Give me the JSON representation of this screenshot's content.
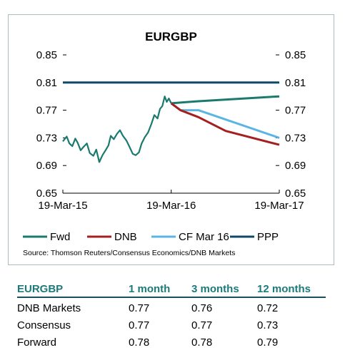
{
  "chart_data": {
    "type": "line",
    "title": "EURGBP",
    "x_tick_labels": [
      "19-Mar-15",
      "19-Mar-16",
      "19-Mar-17"
    ],
    "x_ticks": [
      "2015-03-19",
      "2016-03-19",
      "2017-03-19"
    ],
    "xlim": [
      "2015-03-19",
      "2017-03-19"
    ],
    "ylim": [
      0.65,
      0.85
    ],
    "y_ticks": [
      "0.65",
      "0.69",
      "0.73",
      "0.77",
      "0.81",
      "0.85"
    ],
    "y_axis_both_sides": true,
    "grid": false,
    "legend_position": "bottom",
    "history": {
      "color": "#1a7a6e",
      "points": [
        [
          "2015-03-19",
          0.725
        ],
        [
          "2015-04-01",
          0.732
        ],
        [
          "2015-04-10",
          0.722
        ],
        [
          "2015-04-20",
          0.718
        ],
        [
          "2015-04-30",
          0.729
        ],
        [
          "2015-05-08",
          0.723
        ],
        [
          "2015-05-18",
          0.712
        ],
        [
          "2015-05-28",
          0.717
        ],
        [
          "2015-06-08",
          0.722
        ],
        [
          "2015-06-18",
          0.708
        ],
        [
          "2015-06-30",
          0.704
        ],
        [
          "2015-07-10",
          0.713
        ],
        [
          "2015-07-20",
          0.695
        ],
        [
          "2015-07-31",
          0.705
        ],
        [
          "2015-08-10",
          0.712
        ],
        [
          "2015-08-20",
          0.719
        ],
        [
          "2015-08-28",
          0.733
        ],
        [
          "2015-09-07",
          0.728
        ],
        [
          "2015-09-18",
          0.736
        ],
        [
          "2015-09-28",
          0.741
        ],
        [
          "2015-10-08",
          0.733
        ],
        [
          "2015-10-20",
          0.726
        ],
        [
          "2015-10-30",
          0.717
        ],
        [
          "2015-11-10",
          0.707
        ],
        [
          "2015-11-20",
          0.705
        ],
        [
          "2015-12-01",
          0.709
        ],
        [
          "2015-12-10",
          0.722
        ],
        [
          "2015-12-21",
          0.731
        ],
        [
          "2016-01-01",
          0.738
        ],
        [
          "2016-01-12",
          0.75
        ],
        [
          "2016-01-22",
          0.763
        ],
        [
          "2016-02-02",
          0.758
        ],
        [
          "2016-02-10",
          0.772
        ],
        [
          "2016-02-18",
          0.776
        ],
        [
          "2016-02-26",
          0.79
        ],
        [
          "2016-03-04",
          0.782
        ],
        [
          "2016-03-11",
          0.787
        ],
        [
          "2016-03-19",
          0.78
        ]
      ]
    },
    "series": [
      {
        "name": "Fwd",
        "color": "#1a7a6e",
        "points": [
          [
            "2016-03-19",
            0.78
          ],
          [
            "2016-04-19",
            0.781
          ],
          [
            "2016-06-19",
            0.783
          ],
          [
            "2017-03-19",
            0.79
          ]
        ]
      },
      {
        "name": "DNB",
        "color": "#a41f1f",
        "points": [
          [
            "2016-03-19",
            0.78
          ],
          [
            "2016-04-19",
            0.77
          ],
          [
            "2016-06-19",
            0.76
          ],
          [
            "2016-09-19",
            0.74
          ],
          [
            "2017-03-19",
            0.72
          ]
        ]
      },
      {
        "name": "CF Mar 16",
        "color": "#5bb5e3",
        "points": [
          [
            "2016-03-19",
            0.78
          ],
          [
            "2016-04-19",
            0.77
          ],
          [
            "2016-06-19",
            0.77
          ],
          [
            "2017-03-19",
            0.73
          ]
        ]
      },
      {
        "name": "PPP",
        "color": "#0e4a66",
        "points": [
          [
            "2015-03-19",
            0.81
          ],
          [
            "2017-03-19",
            0.81
          ]
        ]
      }
    ],
    "source": "Source: Thomson Reuters/Consensus Economics/DNB Markets"
  },
  "table": {
    "headers": [
      "EURGBP",
      "1 month",
      "3 months",
      "12 months"
    ],
    "rows": [
      [
        "DNB Markets",
        "0.77",
        "0.76",
        "0.72"
      ],
      [
        "Consensus",
        "0.77",
        "0.77",
        "0.73"
      ],
      [
        "Forward",
        "0.78",
        "0.78",
        "0.79"
      ]
    ]
  }
}
